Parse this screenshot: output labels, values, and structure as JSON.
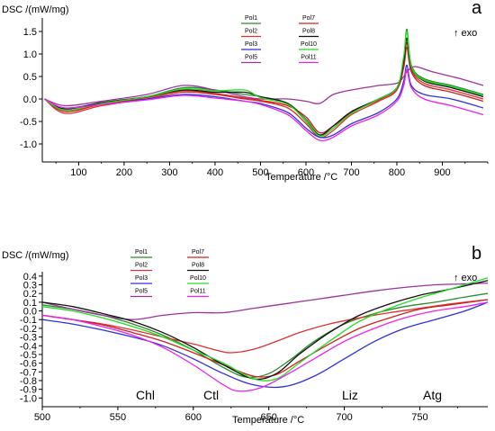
{
  "charts": [
    {
      "panel_letter": "a",
      "ylabel": "DSC /(mW/mg)",
      "xlabel": "Temperature /°C",
      "exo": "↑ exo",
      "xticks": [
        "100",
        "200",
        "300",
        "400",
        "500",
        "600",
        "700",
        "800",
        "900"
      ],
      "yticks": [
        "1.5",
        "1.0",
        "0.5",
        "0.0",
        "-0.5",
        "-1.0"
      ],
      "region_labels": []
    },
    {
      "panel_letter": "b",
      "ylabel": "DSC /(mW/mg)",
      "xlabel": "Temperature /°C",
      "exo": "↑ exo",
      "xticks": [
        "500",
        "550",
        "600",
        "650",
        "700",
        "750"
      ],
      "yticks": [
        "0.4",
        "0.3",
        "0.2",
        "0.1",
        "0.0",
        "-0.1",
        "-0.2",
        "-0.3",
        "-0.4",
        "-0.5",
        "-0.6",
        "-0.7",
        "-0.8",
        "-0.9",
        "-1.0"
      ],
      "region_labels": [
        "Chl",
        "Ctl",
        "Liz",
        "Atg"
      ]
    }
  ],
  "chart_data": [
    {
      "type": "line",
      "xlabel": "Temperature /°C",
      "ylabel": "DSC /(mW/mg)",
      "xlim": [
        20,
        1000
      ],
      "ylim": [
        -1.4,
        1.8
      ],
      "annotation": "↑ exo",
      "legend": "top-center",
      "series": [
        {
          "name": "Pol1",
          "color": "#2e8b2e",
          "x": [
            25,
            70,
            150,
            250,
            330,
            400,
            465,
            500,
            560,
            600,
            630,
            660,
            700,
            760,
            800,
            815,
            822,
            832,
            860,
            920,
            990
          ],
          "y": [
            0.0,
            -0.25,
            -0.1,
            0.05,
            0.25,
            0.2,
            0.1,
            0.05,
            -0.1,
            -0.45,
            -0.8,
            -0.65,
            -0.3,
            0.0,
            0.25,
            0.9,
            1.55,
            0.75,
            0.45,
            0.3,
            0.1
          ]
        },
        {
          "name": "Pol2",
          "color": "#e03030",
          "x": [
            25,
            70,
            150,
            250,
            330,
            400,
            465,
            500,
            560,
            600,
            630,
            660,
            700,
            760,
            800,
            815,
            822,
            832,
            860,
            920,
            990
          ],
          "y": [
            0.0,
            -0.32,
            -0.15,
            0.0,
            0.15,
            0.1,
            0.0,
            -0.05,
            -0.2,
            -0.55,
            -0.85,
            -0.7,
            -0.35,
            -0.05,
            0.2,
            0.8,
            1.25,
            0.65,
            0.35,
            0.2,
            0.0
          ]
        },
        {
          "name": "Pol3",
          "color": "#3030dd",
          "x": [
            25,
            70,
            150,
            250,
            330,
            400,
            465,
            500,
            560,
            600,
            630,
            660,
            700,
            760,
            800,
            815,
            822,
            832,
            860,
            920,
            990
          ],
          "y": [
            0.0,
            -0.2,
            -0.1,
            0.0,
            0.1,
            0.05,
            -0.05,
            -0.1,
            -0.3,
            -0.65,
            -0.85,
            -0.8,
            -0.55,
            -0.3,
            0.0,
            0.4,
            0.75,
            0.3,
            0.1,
            0.0,
            -0.2
          ]
        },
        {
          "name": "Pol5",
          "color": "#a030a0",
          "x": [
            25,
            70,
            150,
            250,
            330,
            400,
            465,
            500,
            560,
            600,
            630,
            660,
            700,
            760,
            800,
            815,
            822,
            840,
            880,
            940,
            990
          ],
          "y": [
            0.0,
            -0.15,
            -0.05,
            0.1,
            0.3,
            0.2,
            0.05,
            0.0,
            0.0,
            -0.05,
            -0.1,
            0.1,
            0.2,
            0.3,
            0.35,
            0.5,
            0.6,
            0.72,
            0.6,
            0.45,
            0.3
          ]
        },
        {
          "name": "Pol7",
          "color": "#d02020",
          "x": [
            25,
            70,
            150,
            250,
            330,
            400,
            465,
            500,
            560,
            600,
            630,
            660,
            700,
            760,
            800,
            815,
            822,
            832,
            860,
            920,
            990
          ],
          "y": [
            0.0,
            -0.28,
            -0.12,
            0.03,
            0.18,
            0.12,
            0.02,
            -0.03,
            -0.15,
            -0.4,
            -0.75,
            -0.6,
            -0.3,
            -0.02,
            0.22,
            0.7,
            1.15,
            0.6,
            0.3,
            0.15,
            -0.05
          ]
        },
        {
          "name": "Pol8",
          "color": "#111111",
          "x": [
            25,
            70,
            150,
            250,
            330,
            400,
            465,
            500,
            560,
            600,
            630,
            660,
            700,
            760,
            800,
            815,
            822,
            832,
            860,
            920,
            990
          ],
          "y": [
            0.0,
            -0.22,
            -0.08,
            0.05,
            0.2,
            0.15,
            0.15,
            0.05,
            -0.1,
            -0.5,
            -0.8,
            -0.6,
            -0.28,
            0.0,
            0.25,
            0.85,
            1.35,
            0.7,
            0.4,
            0.25,
            0.05
          ]
        },
        {
          "name": "Pol10",
          "color": "#22dd22",
          "x": [
            25,
            70,
            150,
            250,
            330,
            400,
            465,
            500,
            560,
            600,
            630,
            660,
            700,
            760,
            800,
            815,
            822,
            832,
            860,
            920,
            990
          ],
          "y": [
            0.0,
            -0.25,
            -0.1,
            0.05,
            0.22,
            0.18,
            0.2,
            0.03,
            -0.12,
            -0.5,
            -0.82,
            -0.65,
            -0.32,
            0.0,
            0.25,
            0.95,
            1.5,
            0.72,
            0.42,
            0.28,
            0.08
          ]
        },
        {
          "name": "Pol11",
          "color": "#ee22ee",
          "x": [
            25,
            70,
            150,
            250,
            330,
            400,
            465,
            500,
            560,
            600,
            630,
            660,
            700,
            760,
            800,
            815,
            822,
            832,
            860,
            920,
            990
          ],
          "y": [
            0.0,
            -0.2,
            -0.12,
            -0.02,
            0.08,
            0.02,
            -0.05,
            -0.12,
            -0.35,
            -0.7,
            -0.92,
            -0.85,
            -0.6,
            -0.35,
            -0.05,
            0.3,
            0.65,
            0.25,
            0.0,
            -0.15,
            -0.35
          ]
        }
      ]
    },
    {
      "type": "line",
      "xlabel": "Temperature /°C",
      "ylabel": "DSC /(mW/mg)",
      "xlim": [
        500,
        795
      ],
      "ylim": [
        -1.1,
        0.45
      ],
      "annotation": "↑ exo",
      "legend": "top-left",
      "series": [
        {
          "name": "Pol1",
          "color": "#2e8b2e",
          "x": [
            500,
            520,
            540,
            560,
            580,
            600,
            620,
            635,
            650,
            665,
            680,
            700,
            720,
            740,
            760,
            780,
            795
          ],
          "y": [
            0.07,
            0.02,
            -0.05,
            -0.15,
            -0.28,
            -0.45,
            -0.65,
            -0.76,
            -0.72,
            -0.55,
            -0.35,
            -0.15,
            -0.03,
            0.05,
            0.1,
            0.16,
            0.2
          ]
        },
        {
          "name": "Pol2",
          "color": "#e03030",
          "x": [
            500,
            520,
            540,
            560,
            580,
            600,
            615,
            625,
            640,
            655,
            670,
            690,
            710,
            730,
            750,
            770,
            795
          ],
          "y": [
            -0.05,
            -0.1,
            -0.15,
            -0.22,
            -0.3,
            -0.38,
            -0.45,
            -0.48,
            -0.44,
            -0.35,
            -0.25,
            -0.15,
            -0.08,
            -0.02,
            0.03,
            0.08,
            0.13
          ]
        },
        {
          "name": "Pol3",
          "color": "#3030dd",
          "x": [
            500,
            520,
            540,
            560,
            580,
            600,
            620,
            640,
            660,
            680,
            700,
            720,
            740,
            760,
            780,
            795
          ],
          "y": [
            -0.1,
            -0.15,
            -0.22,
            -0.3,
            -0.4,
            -0.55,
            -0.72,
            -0.85,
            -0.87,
            -0.75,
            -0.55,
            -0.35,
            -0.2,
            -0.1,
            0.0,
            0.1
          ]
        },
        {
          "name": "Pol5",
          "color": "#a030a0",
          "x": [
            500,
            520,
            540,
            560,
            580,
            600,
            620,
            640,
            660,
            680,
            700,
            720,
            740,
            760,
            780,
            795
          ],
          "y": [
            0.1,
            0.02,
            -0.05,
            -0.1,
            -0.05,
            -0.02,
            -0.02,
            0.03,
            0.08,
            0.13,
            0.18,
            0.23,
            0.27,
            0.3,
            0.31,
            0.32
          ]
        },
        {
          "name": "Pol7",
          "color": "#d02020",
          "x": [
            500,
            520,
            540,
            560,
            580,
            600,
            620,
            640,
            655,
            670,
            690,
            710,
            730,
            750,
            770,
            795
          ],
          "y": [
            -0.05,
            -0.1,
            -0.16,
            -0.25,
            -0.35,
            -0.48,
            -0.62,
            -0.75,
            -0.73,
            -0.58,
            -0.38,
            -0.2,
            -0.08,
            0.02,
            0.07,
            0.13
          ]
        },
        {
          "name": "Pol8",
          "color": "#111111",
          "x": [
            500,
            520,
            540,
            560,
            580,
            600,
            620,
            640,
            655,
            670,
            690,
            710,
            730,
            750,
            770,
            795
          ],
          "y": [
            0.1,
            0.05,
            -0.03,
            -0.12,
            -0.25,
            -0.42,
            -0.62,
            -0.78,
            -0.72,
            -0.5,
            -0.25,
            -0.05,
            0.08,
            0.18,
            0.25,
            0.35
          ]
        },
        {
          "name": "Pol10",
          "color": "#22dd22",
          "x": [
            500,
            520,
            540,
            560,
            580,
            600,
            620,
            640,
            655,
            670,
            690,
            710,
            730,
            750,
            770,
            795
          ],
          "y": [
            0.05,
            0.0,
            -0.08,
            -0.18,
            -0.3,
            -0.45,
            -0.6,
            -0.78,
            -0.78,
            -0.6,
            -0.35,
            -0.12,
            0.03,
            0.15,
            0.25,
            0.38
          ]
        },
        {
          "name": "Pol11",
          "color": "#ee22ee",
          "x": [
            500,
            520,
            540,
            560,
            580,
            600,
            620,
            630,
            645,
            660,
            680,
            700,
            720,
            740,
            760,
            780,
            795
          ],
          "y": [
            -0.05,
            -0.1,
            -0.18,
            -0.28,
            -0.42,
            -0.62,
            -0.85,
            -0.92,
            -0.88,
            -0.75,
            -0.55,
            -0.35,
            -0.2,
            -0.08,
            0.0,
            0.05,
            0.1
          ]
        }
      ]
    }
  ]
}
